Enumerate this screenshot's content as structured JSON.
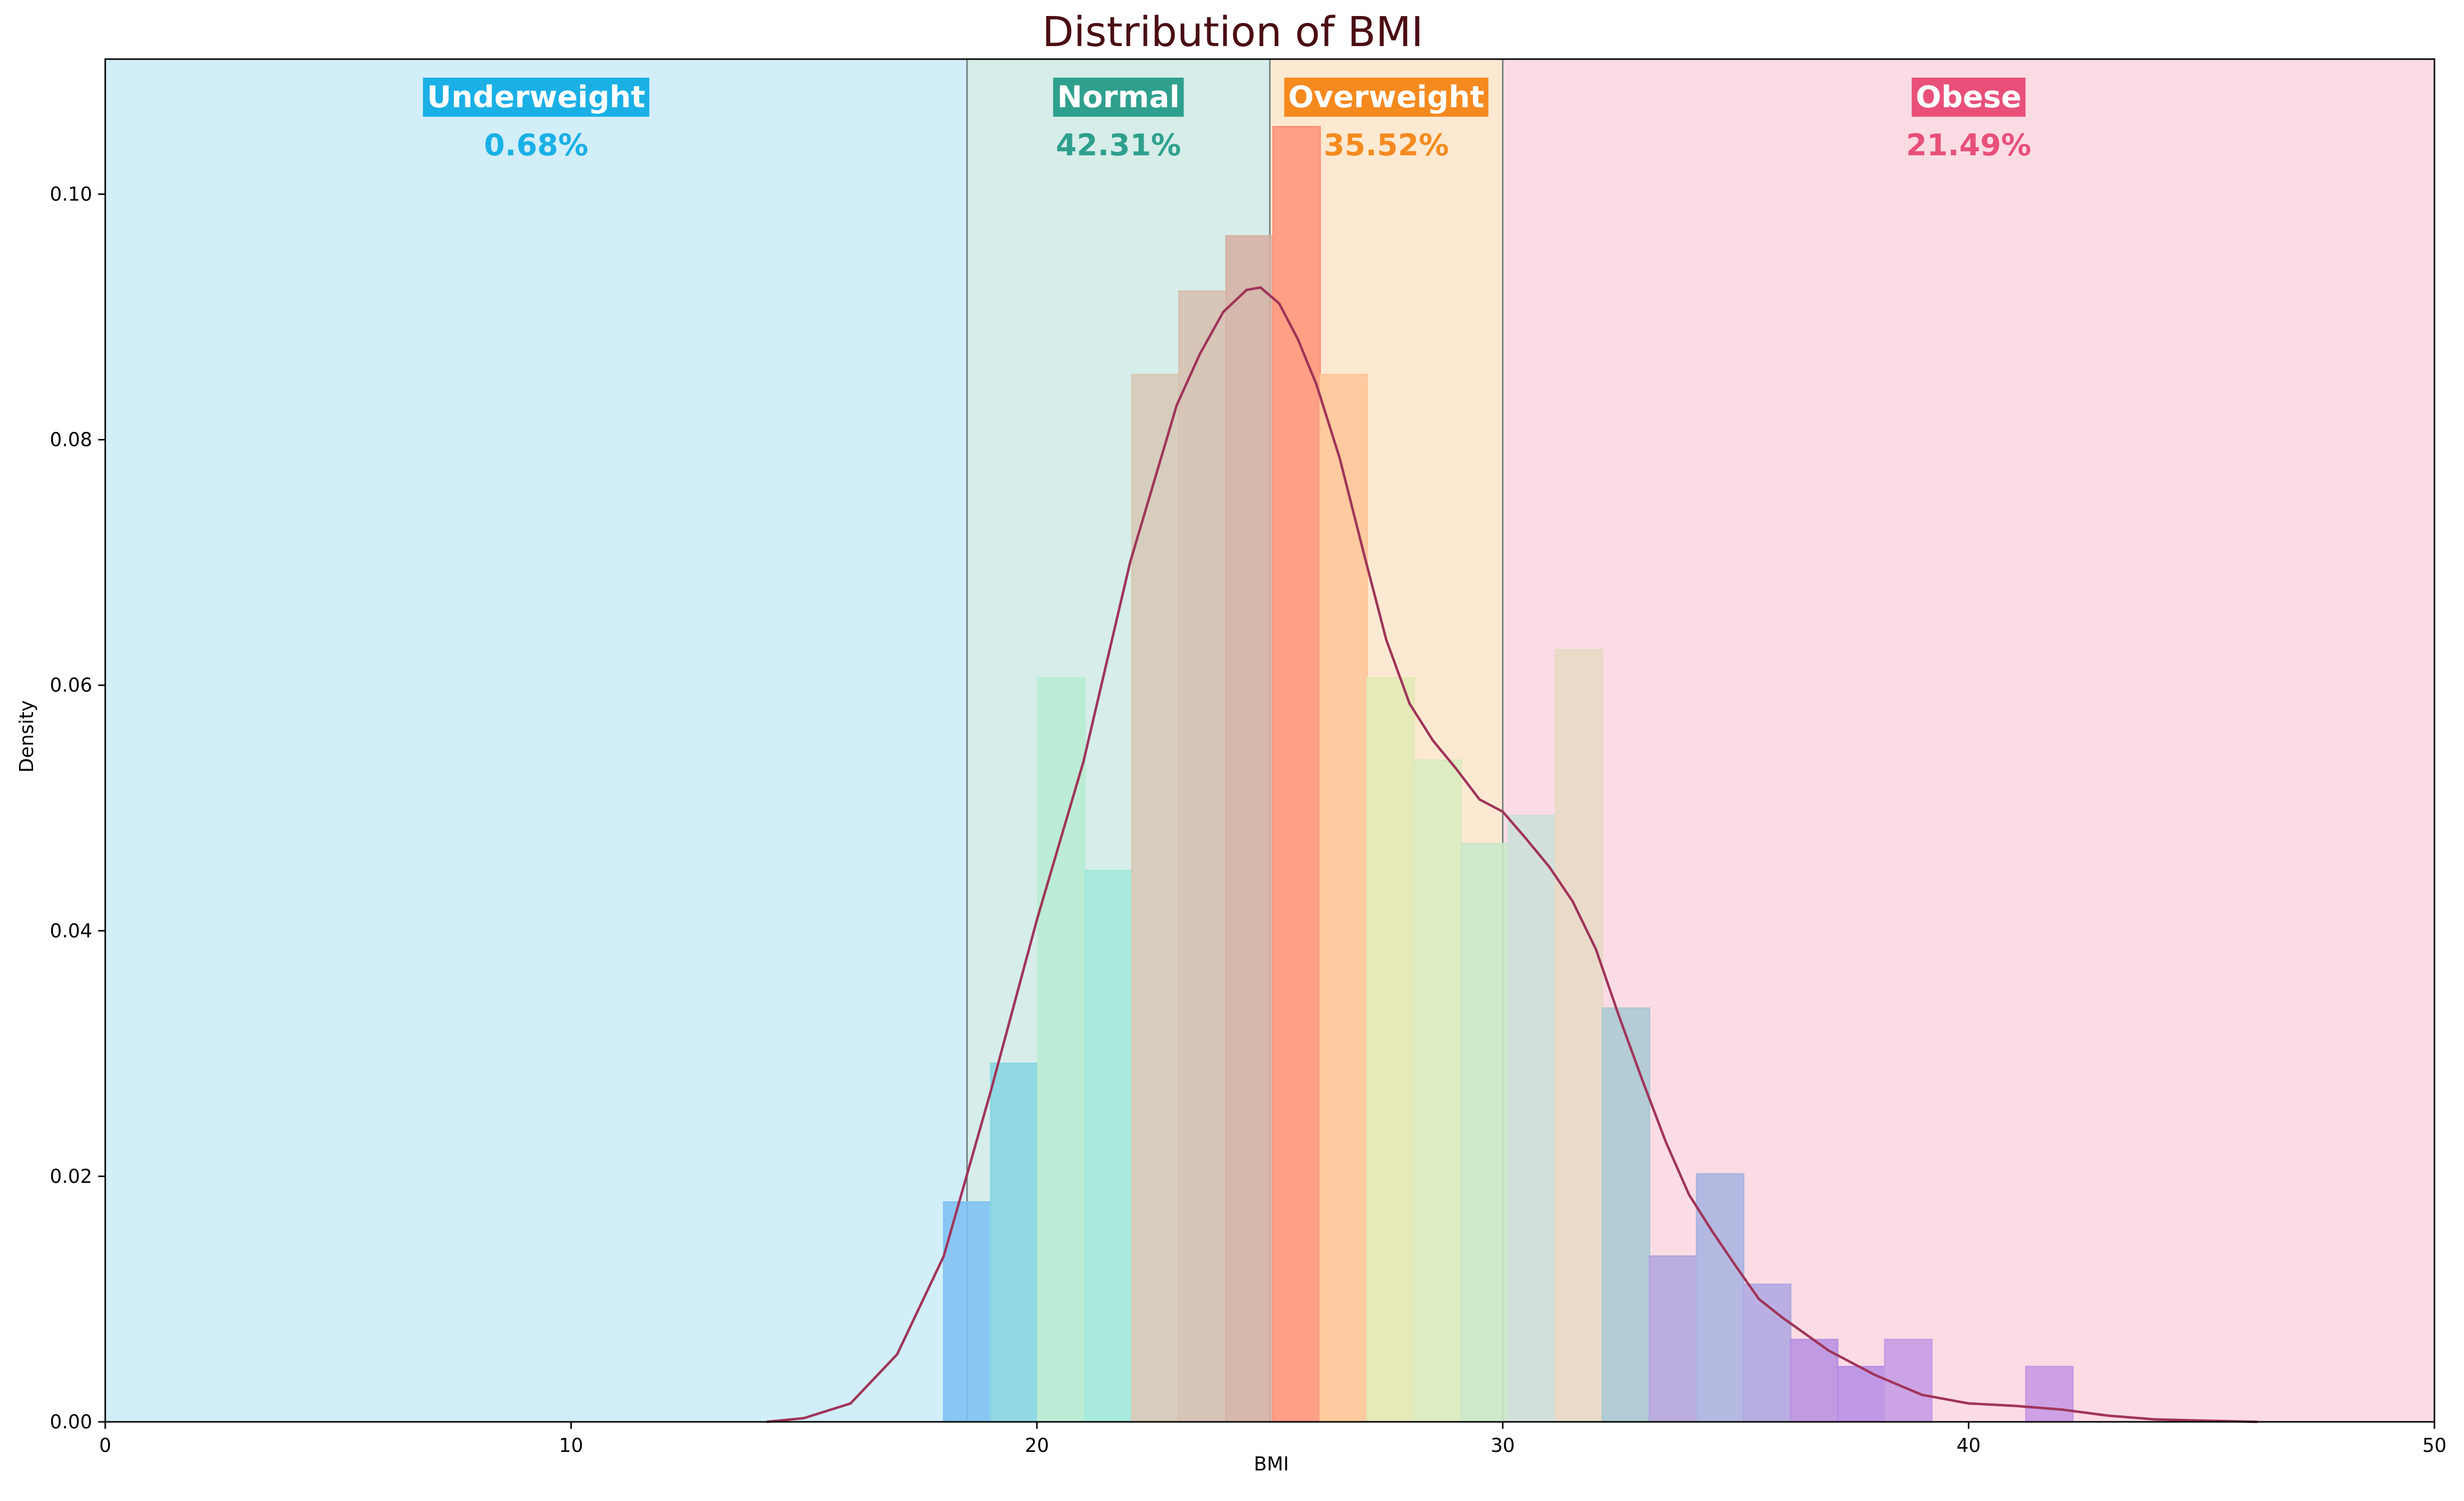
{
  "chart_data": {
    "type": "bar",
    "title": "Distribution of BMI",
    "title_color": "#4a0e14",
    "xlabel": "BMI",
    "ylabel": "Density",
    "xlim": [
      0,
      50
    ],
    "ylim": [
      0,
      0.111
    ],
    "xticks": [
      "0",
      "10",
      "20",
      "30",
      "40",
      "50"
    ],
    "yticks": [
      "0.00",
      "0.02",
      "0.04",
      "0.06",
      "0.08",
      "0.10"
    ],
    "grid": false,
    "categories": [
      {
        "name": "Underweight",
        "percent": "0.68%",
        "range": [
          0,
          18.5
        ],
        "color": "#1ab0e6",
        "band_color": "#d2eef8"
      },
      {
        "name": "Normal",
        "percent": "42.31%",
        "range": [
          18.5,
          25
        ],
        "color": "#2fa08e",
        "band_color": "#d6ede9"
      },
      {
        "name": "Overweight",
        "percent": "35.52%",
        "range": [
          25,
          30
        ],
        "color": "#f58a1f",
        "band_color": "#fde9d2"
      },
      {
        "name": "Obese",
        "percent": "21.49%",
        "range": [
          30,
          50
        ],
        "color": "#e8507a",
        "band_color": "#fcdce4"
      }
    ],
    "histogram": {
      "bin_width": 1.01,
      "bins": [
        {
          "x0": 18.0,
          "y": 0.0179,
          "color": "#7fc0f2"
        },
        {
          "x0": 19.01,
          "y": 0.0292,
          "color": "#88d6e3"
        },
        {
          "x0": 20.02,
          "y": 0.0606,
          "color": "#b8ecd1"
        },
        {
          "x0": 21.03,
          "y": 0.0449,
          "color": "#a2e9dc"
        },
        {
          "x0": 22.04,
          "y": 0.0853,
          "color": "#d6c8b5"
        },
        {
          "x0": 23.05,
          "y": 0.0921,
          "color": "#d7bfaf"
        },
        {
          "x0": 24.06,
          "y": 0.0966,
          "color": "#d6b1a4"
        },
        {
          "x0": 25.07,
          "y": 0.1055,
          "color": "#ff9479"
        },
        {
          "x0": 26.08,
          "y": 0.0853,
          "color": "#ffc597"
        },
        {
          "x0": 27.09,
          "y": 0.0606,
          "color": "#e2e8b4"
        },
        {
          "x0": 28.1,
          "y": 0.0539,
          "color": "#d8ecbe"
        },
        {
          "x0": 29.11,
          "y": 0.0471,
          "color": "#c8e8c9"
        },
        {
          "x0": 30.12,
          "y": 0.0494,
          "color": "#cde0d8"
        },
        {
          "x0": 31.13,
          "y": 0.0629,
          "color": "#e6dac6"
        },
        {
          "x0": 32.14,
          "y": 0.0337,
          "color": "#aacad3"
        },
        {
          "x0": 33.15,
          "y": 0.0135,
          "color": "#b3a6df"
        },
        {
          "x0": 34.16,
          "y": 0.0202,
          "color": "#aab4e1"
        },
        {
          "x0": 35.17,
          "y": 0.0112,
          "color": "#b0a8e2"
        },
        {
          "x0": 36.18,
          "y": 0.0067,
          "color": "#b792e2"
        },
        {
          "x0": 37.19,
          "y": 0.0045,
          "color": "#b68ee6"
        },
        {
          "x0": 38.2,
          "y": 0.0067,
          "color": "#c59be4"
        },
        {
          "x0": 41.23,
          "y": 0.0045,
          "color": "#c799e5"
        }
      ]
    },
    "kde": {
      "color": "#a0355a",
      "x": [
        14.2,
        15.0,
        16.0,
        17.0,
        18.0,
        19.0,
        20.0,
        21.0,
        22.0,
        23.0,
        23.5,
        24.0,
        24.5,
        24.8,
        25.2,
        25.6,
        26.0,
        26.5,
        27.0,
        27.5,
        28.0,
        28.5,
        29.0,
        29.5,
        30.0,
        30.5,
        31.0,
        31.5,
        32.0,
        32.5,
        33.0,
        33.5,
        34.0,
        34.5,
        35.0,
        35.5,
        36.0,
        37.0,
        38.0,
        39.0,
        40.0,
        41.0,
        42.0,
        43.0,
        44.0,
        45.0,
        46.2
      ],
      "y": [
        0.0,
        0.0003,
        0.0015,
        0.0055,
        0.0135,
        0.0268,
        0.0409,
        0.0538,
        0.07,
        0.0828,
        0.087,
        0.0904,
        0.0922,
        0.0924,
        0.0911,
        0.0882,
        0.0845,
        0.0785,
        0.071,
        0.0637,
        0.0585,
        0.0555,
        0.0532,
        0.0507,
        0.0497,
        0.0475,
        0.0452,
        0.0424,
        0.0385,
        0.033,
        0.0278,
        0.0228,
        0.0185,
        0.0155,
        0.0127,
        0.01,
        0.0085,
        0.0058,
        0.0038,
        0.0022,
        0.0015,
        0.0013,
        0.001,
        0.0005,
        0.0002,
        0.0001,
        0.0
      ]
    }
  }
}
